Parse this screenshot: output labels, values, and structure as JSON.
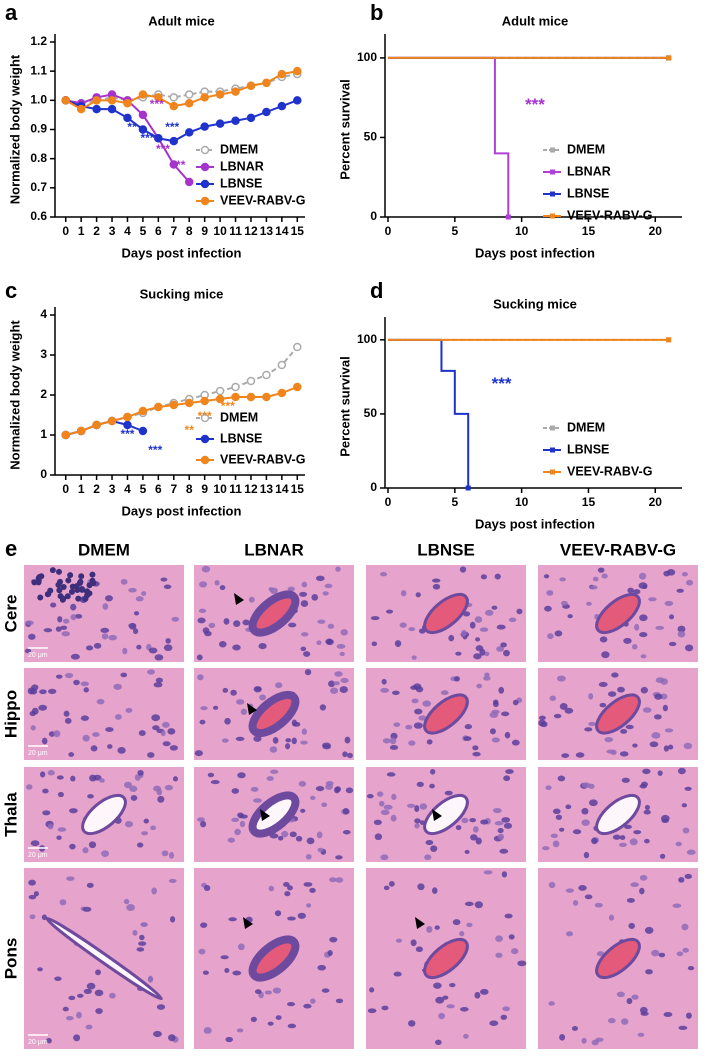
{
  "chart_data": [
    {
      "type": "line",
      "panel_label": "a",
      "title": "Adult mice",
      "xlabel": "Days post infection",
      "ylabel": "Normalized body weight",
      "x": [
        0,
        1,
        2,
        3,
        4,
        5,
        6,
        7,
        8,
        9,
        10,
        11,
        12,
        13,
        14,
        15
      ],
      "xlim": [
        -0.5,
        15.5
      ],
      "xticks": [
        0,
        1,
        2,
        3,
        4,
        5,
        6,
        7,
        8,
        9,
        10,
        11,
        12,
        13,
        14,
        15
      ],
      "ylim": [
        0.6,
        1.2
      ],
      "yticks": [
        0.6,
        0.7,
        0.8,
        0.9,
        {
          "value": 1,
          "label": "1.0"
        },
        1.1,
        1.2
      ],
      "series": [
        {
          "name": "DMEM",
          "color": "#aaaaaa",
          "dashed": true,
          "marker": "open-circle",
          "values": [
            1.0,
            0.99,
            1.0,
            1.01,
            1.0,
            1.01,
            1.02,
            1.01,
            1.02,
            1.03,
            1.03,
            1.04,
            1.05,
            1.06,
            1.08,
            1.09
          ]
        },
        {
          "name": "LBNAR",
          "color": "#a633cc",
          "dashed": false,
          "marker": "circle",
          "values": [
            1.0,
            0.99,
            1.01,
            1.02,
            1.0,
            0.95,
            0.87,
            0.78,
            0.72,
            null,
            null,
            null,
            null,
            null,
            null,
            null
          ]
        },
        {
          "name": "LBNSE",
          "color": "#1f33cc",
          "dashed": false,
          "marker": "circle",
          "values": [
            1.0,
            0.98,
            0.97,
            0.97,
            0.94,
            0.9,
            0.87,
            0.86,
            0.89,
            0.91,
            0.92,
            0.93,
            0.94,
            0.96,
            0.98,
            1.0
          ]
        },
        {
          "name": "VEEV-RABV-G",
          "color": "#f0851e",
          "dashed": false,
          "marker": "circle",
          "values": [
            1.0,
            0.97,
            1.0,
            1.0,
            0.99,
            1.02,
            1.01,
            0.98,
            0.99,
            1.01,
            1.02,
            1.03,
            1.05,
            1.06,
            1.09,
            1.1
          ]
        }
      ],
      "annotations": [
        {
          "text": "***",
          "color": "#a633cc"
        },
        {
          "text": "**",
          "color": "#1f33cc"
        },
        {
          "text": "***",
          "color": "#1f33cc"
        },
        {
          "text": "***",
          "color": "#1f33cc"
        },
        {
          "text": "***",
          "color": "#a633cc"
        },
        {
          "text": "***",
          "color": "#a633cc"
        }
      ]
    },
    {
      "type": "step",
      "panel_label": "b",
      "title": "Adult mice",
      "xlabel": "Days post infection",
      "ylabel": "Percent survival",
      "xlim": [
        0,
        22
      ],
      "xticks": [
        0,
        5,
        10,
        15,
        20
      ],
      "ylim": [
        0,
        110
      ],
      "yticks": [
        0,
        50,
        100
      ],
      "series": [
        {
          "name": "DMEM",
          "color": "#aaaaaa",
          "dashed": true,
          "x": [
            0,
            21
          ],
          "values": [
            100,
            100
          ]
        },
        {
          "name": "LBNAR",
          "color": "#b040d8",
          "dashed": false,
          "x": [
            0,
            8,
            9
          ],
          "values": [
            100,
            40,
            0
          ]
        },
        {
          "name": "LBNSE",
          "color": "#1f33cc",
          "dashed": false,
          "x": [
            0,
            21
          ],
          "values": [
            100,
            100
          ]
        },
        {
          "name": "VEEV-RABV-G",
          "color": "#f0851e",
          "dashed": false,
          "x": [
            0,
            21
          ],
          "values": [
            100,
            100
          ]
        }
      ],
      "annotations": [
        {
          "text": "***",
          "color": "#a633cc"
        }
      ]
    },
    {
      "type": "line",
      "panel_label": "c",
      "title": "Sucking mice",
      "xlabel": "Days post infection",
      "ylabel": "Normalized body weight",
      "x": [
        0,
        1,
        2,
        3,
        4,
        5,
        6,
        7,
        8,
        9,
        10,
        11,
        12,
        13,
        14,
        15
      ],
      "xlim": [
        -0.5,
        15.5
      ],
      "xticks": [
        0,
        1,
        2,
        3,
        4,
        5,
        6,
        7,
        8,
        9,
        10,
        11,
        12,
        13,
        14,
        15
      ],
      "ylim": [
        0,
        4
      ],
      "yticks": [
        0,
        1,
        2,
        3,
        4
      ],
      "series": [
        {
          "name": "DMEM",
          "color": "#aaaaaa",
          "dashed": true,
          "marker": "open-circle",
          "values": [
            1.0,
            1.1,
            1.25,
            1.35,
            1.45,
            1.55,
            1.7,
            1.8,
            1.9,
            2.0,
            2.1,
            2.2,
            2.35,
            2.5,
            2.75,
            3.2
          ]
        },
        {
          "name": "LBNSE",
          "color": "#1f33cc",
          "dashed": false,
          "marker": "circle",
          "values": [
            1.0,
            1.1,
            1.25,
            1.35,
            1.25,
            1.1,
            null,
            null,
            null,
            null,
            null,
            null,
            null,
            null,
            null,
            null
          ]
        },
        {
          "name": "VEEV-RABV-G",
          "color": "#f0851e",
          "dashed": false,
          "marker": "circle",
          "values": [
            1.0,
            1.1,
            1.25,
            1.35,
            1.45,
            1.6,
            1.7,
            1.75,
            1.8,
            1.85,
            1.9,
            1.95,
            1.95,
            1.95,
            2.05,
            2.2
          ]
        }
      ],
      "annotations": [
        {
          "text": "***",
          "color": "#1f33cc"
        },
        {
          "text": "***",
          "color": "#1f33cc"
        },
        {
          "text": "**",
          "color": "#f0851e"
        },
        {
          "text": "***",
          "color": "#f0851e"
        },
        {
          "text": "***",
          "color": "#f0851e"
        }
      ]
    },
    {
      "type": "step",
      "panel_label": "d",
      "title": "Sucking mice",
      "xlabel": "Days post infection",
      "ylabel": "Percent survival",
      "xlim": [
        0,
        22
      ],
      "xticks": [
        0,
        5,
        10,
        15,
        20
      ],
      "ylim": [
        0,
        110
      ],
      "yticks": [
        0,
        50,
        100
      ],
      "series": [
        {
          "name": "DMEM",
          "color": "#aaaaaa",
          "dashed": true,
          "x": [
            0,
            21
          ],
          "values": [
            100,
            100
          ]
        },
        {
          "name": "LBNSE",
          "color": "#1f33cc",
          "dashed": false,
          "x": [
            0,
            4,
            5,
            6
          ],
          "values": [
            100,
            79,
            50,
            0
          ]
        },
        {
          "name": "VEEV-RABV-G",
          "color": "#f0851e",
          "dashed": false,
          "x": [
            0,
            21
          ],
          "values": [
            100,
            100
          ]
        }
      ],
      "annotations": [
        {
          "text": "***",
          "color": "#1f33cc"
        }
      ]
    }
  ],
  "histology": {
    "panel_label": "e",
    "columns": [
      "DMEM",
      "LBNAR",
      "LBNSE",
      "VEEV-RABV-G"
    ],
    "rows": [
      "Cere",
      "Hippo",
      "Thala",
      "Pons"
    ],
    "scale_bar": "20 μm"
  }
}
